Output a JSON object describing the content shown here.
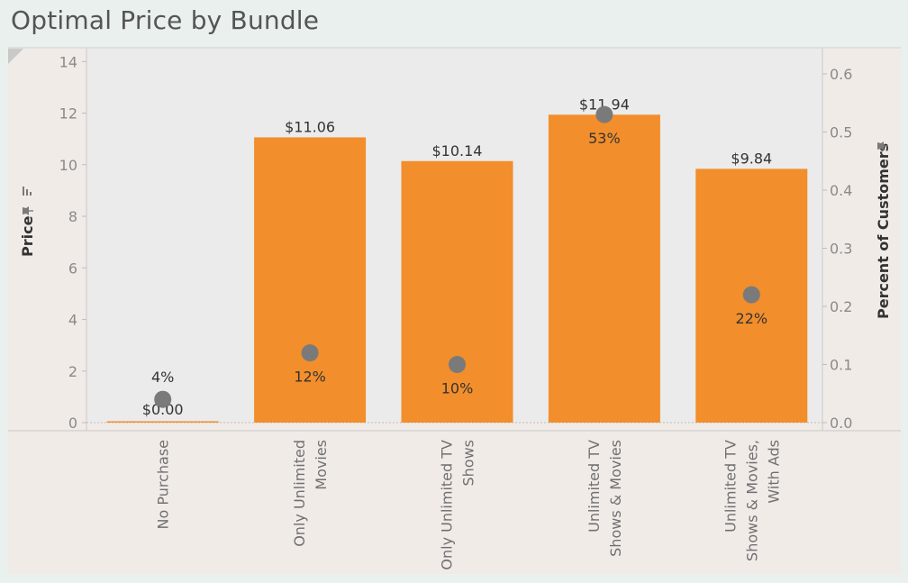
{
  "title": "Optimal Price by Bundle",
  "chart_data": {
    "type": "bar",
    "categories": [
      [
        "No Purchase"
      ],
      [
        "Only Unlimited",
        "Movies"
      ],
      [
        "Only Unlimited TV",
        "Shows"
      ],
      [
        "Unlimited TV",
        "Shows & Movies"
      ],
      [
        "Unlimited TV",
        "Shows & Movies,",
        "With Ads"
      ]
    ],
    "series": [
      {
        "kind": "bar",
        "axis": "left",
        "color": "#f28e2b",
        "values": [
          0.0,
          11.06,
          10.14,
          11.94,
          9.84
        ],
        "labels": [
          "$0.00",
          "$11.06",
          "$10.14",
          "$11.94",
          "$9.84"
        ]
      },
      {
        "kind": "circle",
        "axis": "right",
        "color": "#7a7a7a",
        "values": [
          0.04,
          0.12,
          0.1,
          0.53,
          0.22
        ],
        "labels": [
          "4%",
          "12%",
          "10%",
          "53%",
          "22%"
        ]
      }
    ],
    "ylabel": "Price",
    "y2label": "Percent of Customers",
    "ylim": [
      0,
      14.5
    ],
    "y2lim": [
      0,
      0.6
    ],
    "yticks": [
      "0",
      "2",
      "4",
      "6",
      "8",
      "10",
      "12",
      "14"
    ],
    "y2ticks": [
      "0.0",
      "0.1",
      "0.2",
      "0.3",
      "0.4",
      "0.5",
      "0.6"
    ],
    "grid": false,
    "legend": "none"
  },
  "colors": {
    "bar": "#f28e2b",
    "circle": "#7a7a7a",
    "plot_bg": "#ebebeb",
    "panel_bg": "#f1ebe8",
    "page_bg": "#e9f0ee"
  },
  "icons": {
    "pin": "pin-icon",
    "sort": "sort-icon"
  }
}
